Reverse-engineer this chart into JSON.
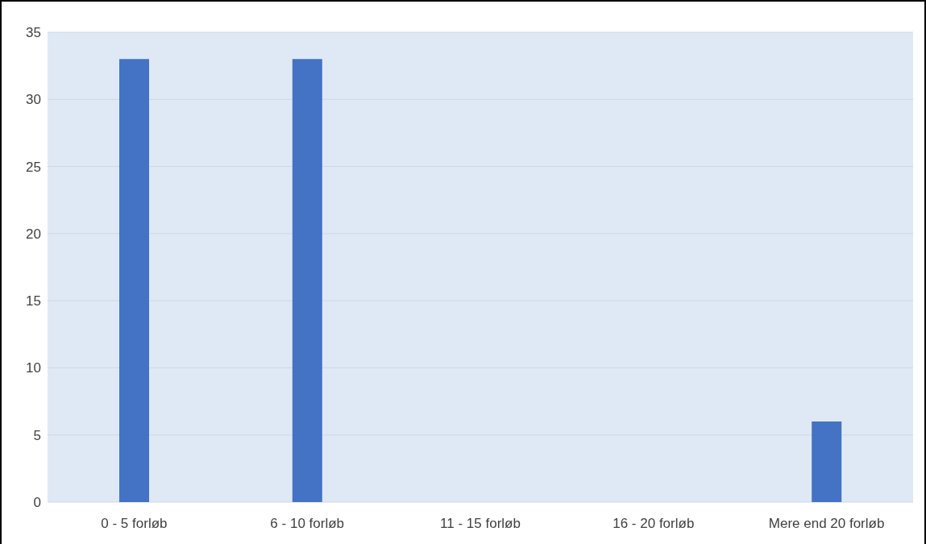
{
  "chart_data": {
    "type": "bar",
    "categories": [
      "0 - 5 forløb",
      "6 - 10 forløb",
      "11 - 15 forløb",
      "16 - 20 forløb",
      "Mere end 20 forløb"
    ],
    "values": [
      33,
      33,
      0,
      0,
      6
    ],
    "color": "#4472c4",
    "ylim": [
      0,
      35
    ],
    "yticks": [
      0,
      5,
      10,
      15,
      20,
      25,
      30,
      35
    ],
    "grid": "y"
  }
}
